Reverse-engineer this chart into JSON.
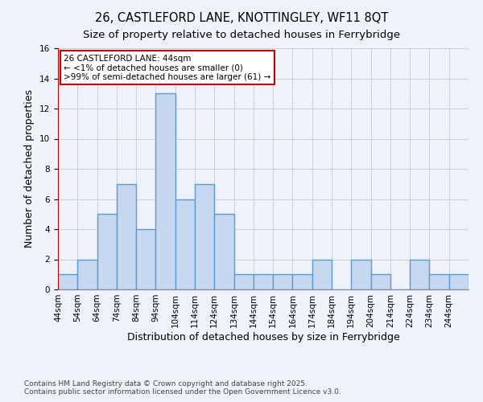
{
  "title_line1": "26, CASTLEFORD LANE, KNOTTINGLEY, WF11 8QT",
  "title_line2": "Size of property relative to detached houses in Ferrybridge",
  "xlabel": "Distribution of detached houses by size in Ferrybridge",
  "ylabel": "Number of detached properties",
  "footnote1": "Contains HM Land Registry data © Crown copyright and database right 2025.",
  "footnote2": "Contains public sector information licensed under the Open Government Licence v3.0.",
  "annotation_title": "26 CASTLEFORD LANE: 44sqm",
  "annotation_line2": "← <1% of detached houses are smaller (0)",
  "annotation_line3": ">99% of semi-detached houses are larger (61) →",
  "bin_labels": [
    "44sqm",
    "54sqm",
    "64sqm",
    "74sqm",
    "84sqm",
    "94sqm",
    "104sqm",
    "114sqm",
    "124sqm",
    "134sqm",
    "144sqm",
    "154sqm",
    "164sqm",
    "174sqm",
    "184sqm",
    "194sqm",
    "204sqm",
    "214sqm",
    "224sqm",
    "234sqm",
    "244sqm"
  ],
  "bins_left": [
    44,
    54,
    64,
    74,
    84,
    94,
    104,
    114,
    124,
    134,
    144,
    154,
    164,
    174,
    184,
    194,
    204,
    214,
    224,
    234,
    244
  ],
  "values": [
    1,
    2,
    5,
    7,
    4,
    13,
    6,
    7,
    5,
    1,
    1,
    1,
    1,
    2,
    0,
    2,
    1,
    0,
    2,
    1,
    1
  ],
  "bar_color": "#c5d8f0",
  "bar_edgecolor": "#5b9bd5",
  "bar_linewidth": 1.0,
  "ref_line_x": 44,
  "ref_line_color": "#cc0000",
  "background_color": "#eef2f9",
  "grid_color": "#c8d0e0",
  "ylim": [
    0,
    16
  ],
  "yticks": [
    0,
    2,
    4,
    6,
    8,
    10,
    12,
    14,
    16
  ],
  "annotation_box_edgecolor": "#cc0000",
  "annotation_box_facecolor": "#ffffff",
  "title_fontsize": 10.5,
  "subtitle_fontsize": 9.5,
  "axis_label_fontsize": 9,
  "tick_fontsize": 7.5,
  "annotation_fontsize": 7.5,
  "footnote_fontsize": 6.5
}
